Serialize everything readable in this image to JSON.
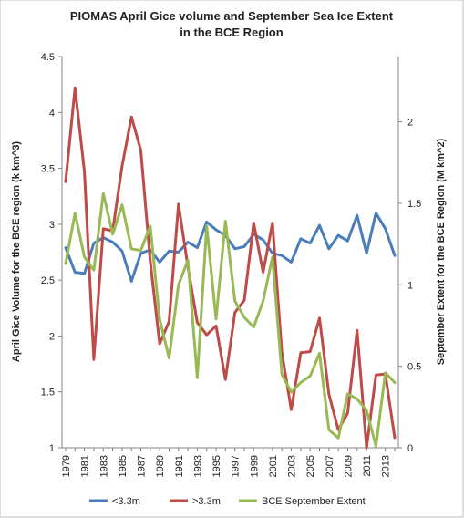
{
  "chart_data": {
    "type": "line",
    "title_line1": "PIOMAS  April Gice volume and September Sea Ice Extent",
    "title_line2": "in the BCE Region",
    "ylabel_left": "April Gice Volume  for the BCE region  (k km^3)",
    "ylabel_right": "September Extent for the BCE Region  (M km^2)",
    "ylim_left": [
      1,
      4.5
    ],
    "ylim_right": [
      0,
      2.4
    ],
    "yticks_left": [
      "1",
      "1.5",
      "2",
      "2.5",
      "3",
      "3.5",
      "4",
      "4.5"
    ],
    "yticks_right": [
      "0",
      "0.5",
      "1",
      "1.5",
      "2"
    ],
    "x": [
      1979,
      1980,
      1981,
      1982,
      1983,
      1984,
      1985,
      1986,
      1987,
      1988,
      1989,
      1990,
      1991,
      1992,
      1993,
      1994,
      1995,
      1996,
      1997,
      1998,
      1999,
      2000,
      2001,
      2002,
      2003,
      2004,
      2005,
      2006,
      2007,
      2008,
      2009,
      2010,
      2011,
      2012,
      2013,
      2014
    ],
    "xtick_labels": [
      "1979",
      "1981",
      "1983",
      "1985",
      "1987",
      "1989",
      "1991",
      "1993",
      "1995",
      "1997",
      "1999",
      "2001",
      "2003",
      "2005",
      "2007",
      "2009",
      "2011",
      "2013"
    ],
    "series": [
      {
        "name": "<3.3m",
        "color": "#4a7ebb",
        "axis": "left",
        "values": [
          2.79,
          2.57,
          2.56,
          2.83,
          2.88,
          2.84,
          2.76,
          2.49,
          2.74,
          2.77,
          2.66,
          2.76,
          2.75,
          2.84,
          2.79,
          3.02,
          2.95,
          2.9,
          2.78,
          2.8,
          2.91,
          2.86,
          2.74,
          2.72,
          2.66,
          2.87,
          2.83,
          2.99,
          2.78,
          2.9,
          2.85,
          3.08,
          2.74,
          3.1,
          2.96,
          2.72
        ]
      },
      {
        "name": ">3.3m",
        "color": "#be4b48",
        "axis": "left",
        "values": [
          3.38,
          4.22,
          3.47,
          1.79,
          2.96,
          2.94,
          3.52,
          3.96,
          3.66,
          2.67,
          1.93,
          2.13,
          3.18,
          2.62,
          2.12,
          2.01,
          2.09,
          1.61,
          2.21,
          2.32,
          3.01,
          2.57,
          3.01,
          1.85,
          1.34,
          1.85,
          1.86,
          2.16,
          1.48,
          1.16,
          1.31,
          2.05,
          1.0,
          1.65,
          1.66,
          1.09
        ]
      },
      {
        "name": "BCE September Extent",
        "color": "#98b954",
        "axis": "right",
        "values": [
          1.13,
          1.44,
          1.17,
          1.09,
          1.56,
          1.31,
          1.49,
          1.22,
          1.21,
          1.36,
          0.79,
          0.55,
          1.0,
          1.15,
          0.43,
          1.36,
          0.79,
          1.39,
          0.9,
          0.8,
          0.74,
          0.9,
          1.17,
          0.45,
          0.34,
          0.4,
          0.44,
          0.58,
          0.11,
          0.06,
          0.33,
          0.3,
          0.23,
          0.01,
          0.46,
          0.4
        ]
      }
    ],
    "legend_position": "bottom",
    "grid": false
  }
}
